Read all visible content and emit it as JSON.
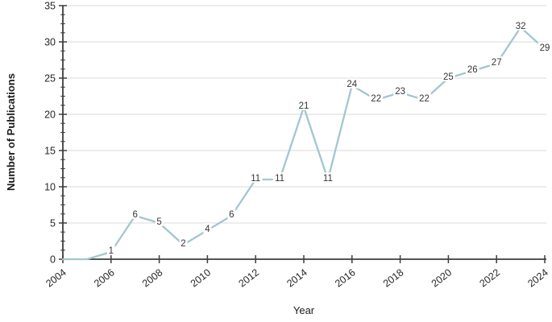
{
  "figure": {
    "background": "#ffffff",
    "line_color": "#a2c6d0",
    "grid_color": "#d8d8d8",
    "axis_color": "#3d3d3d",
    "tick_label_color": "#262626",
    "data_label_color": "#363636",
    "label_halo_color": "#ffffff"
  },
  "chart_data": {
    "type": "line",
    "title": "",
    "xlabel": "Year",
    "ylabel": "Number of Publications",
    "x": [
      2004,
      2005,
      2006,
      2007,
      2008,
      2009,
      2010,
      2011,
      2012,
      2013,
      2014,
      2015,
      2016,
      2017,
      2018,
      2019,
      2020,
      2021,
      2022,
      2023,
      2024
    ],
    "y": [
      0,
      0,
      1,
      6,
      5,
      2,
      4,
      6,
      11,
      11,
      21,
      11,
      24,
      22,
      23,
      22,
      25,
      26,
      27,
      32,
      29
    ],
    "point_labels": [
      null,
      null,
      "1",
      "6",
      "5",
      "2",
      "4",
      "6",
      "11",
      "11",
      "21",
      "11",
      "24",
      "22",
      "23",
      "22",
      "25",
      "26",
      "27",
      "32",
      "29"
    ],
    "xlim": [
      2004,
      2024
    ],
    "ylim": [
      0,
      35
    ],
    "xtick_step": 2,
    "ytick_step": 5,
    "y_minor_divisions": 4,
    "xtick_labels": [
      "2004",
      "2006",
      "2008",
      "2010",
      "2012",
      "2014",
      "2016",
      "2018",
      "2020",
      "2022",
      "2024"
    ],
    "ytick_labels": [
      "0",
      "5",
      "10",
      "15",
      "20",
      "25",
      "30",
      "35"
    ],
    "grid": "horizontal",
    "legend": null
  }
}
